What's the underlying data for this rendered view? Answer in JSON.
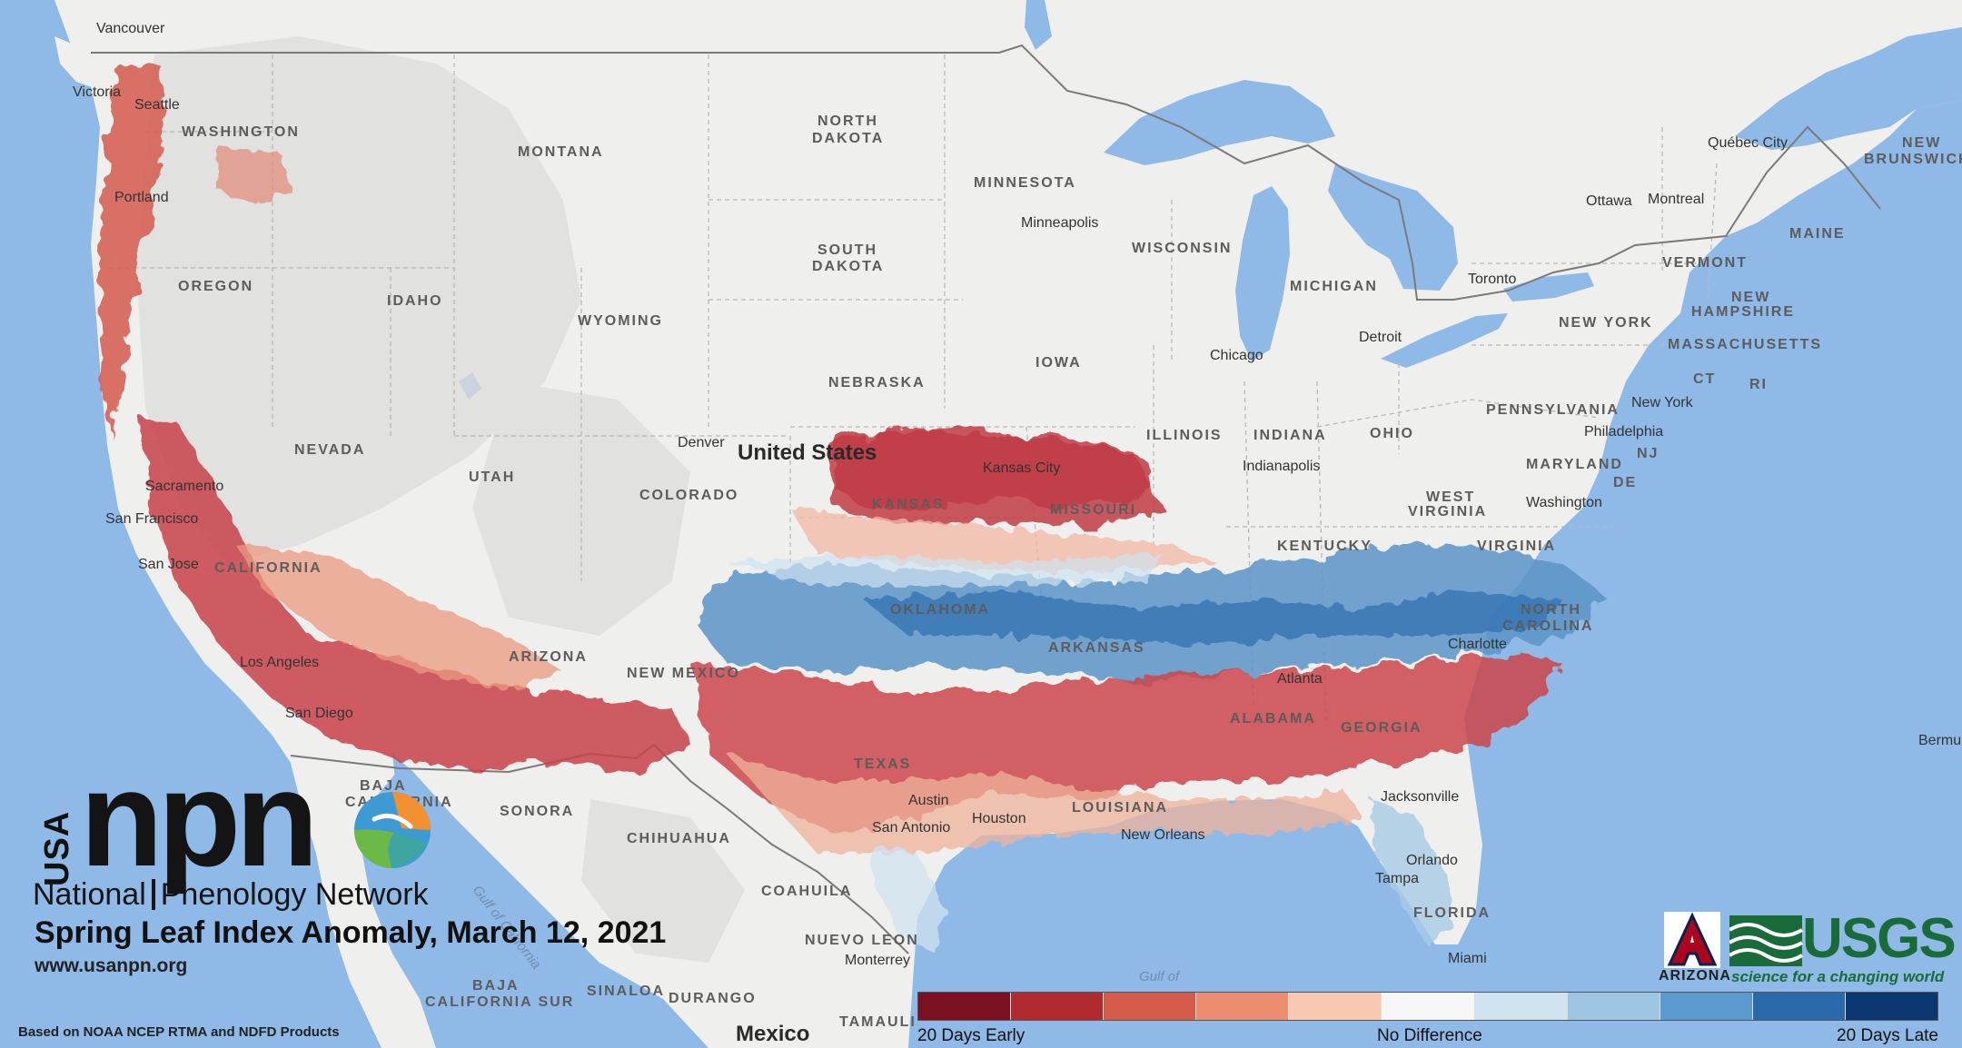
{
  "title": "Spring Leaf Index Anomaly, March 12, 2021",
  "website": "www.usanpn.org",
  "credit": "Based on NOAA NCEP RTMA and NDFD Products",
  "branding": {
    "usa": "USA",
    "npn": "npn",
    "name_part1": "National",
    "name_part2": "Phenology Network"
  },
  "partners": {
    "ua_letter": "A",
    "ua_name": "ARIZONA",
    "usgs": "USGS",
    "usgs_tagline": "science for a changing world"
  },
  "legend": {
    "colors": [
      "#7a1020",
      "#b02a2f",
      "#d45a4a",
      "#ec8d70",
      "#f8c8b0",
      "#f7f7f7",
      "#cfe3f0",
      "#9ec6e2",
      "#5b9bcf",
      "#2a6aab",
      "#0d3770"
    ],
    "label_left": "20 Days Early",
    "label_center": "No Difference",
    "label_right": "20 Days Late"
  },
  "country_labels": {
    "us": "United States",
    "mexico": "Mexico"
  },
  "state_labels": {
    "washington": "WASHINGTON",
    "montana": "MONTANA",
    "north_dakota_1": "NORTH",
    "north_dakota_2": "DAKOTA",
    "minnesota": "MINNESOTA",
    "south_dakota_1": "SOUTH",
    "south_dakota_2": "DAKOTA",
    "wisconsin": "WISCONSIN",
    "michigan": "MICHIGAN",
    "oregon": "OREGON",
    "idaho": "IDAHO",
    "wyoming": "WYOMING",
    "nebraska": "NEBRASKA",
    "iowa": "IOWA",
    "illinois": "ILLINOIS",
    "indiana": "INDIANA",
    "ohio": "OHIO",
    "pennsylvania": "PENNSYLVANIA",
    "new_york": "NEW YORK",
    "vermont": "VERMONT",
    "new_hampshire_1": "NEW",
    "new_hampshire_2": "HAMPSHIRE",
    "massachusetts": "MASSACHUSETTS",
    "maine": "MAINE",
    "ct": "CT",
    "ri": "RI",
    "nj": "NJ",
    "de": "DE",
    "maryland": "MARYLAND",
    "nevada": "NEVADA",
    "utah": "UTAH",
    "colorado": "COLORADO",
    "kansas": "KANSAS",
    "missouri": "MISSOURI",
    "kentucky": "KENTUCKY",
    "west_virginia_1": "WEST",
    "west_virginia_2": "VIRGINIA",
    "virginia": "VIRGINIA",
    "oklahoma": "OKLAHOMA",
    "arkansas": "ARKANSAS",
    "north_carolina_1": "NORTH",
    "north_carolina_2": "CAROLINA",
    "arizona": "ARIZONA",
    "new_mexico": "NEW MEXICO",
    "texas": "TEXAS",
    "louisiana": "LOUISIANA",
    "alabama": "ALABAMA",
    "georgia": "GEORGIA",
    "florida": "FLORIDA",
    "california": "CALIFORNIA",
    "new_brunswick_1": "NEW",
    "new_brunswick_2": "BRUNSWICK",
    "sonora": "SONORA",
    "chihuahua": "CHIHUAHUA",
    "coahuila": "COAHUILA",
    "nuevo_leon": "NUEVO LEON",
    "sinaloa": "SINALOA",
    "durango": "DURANGO",
    "tamaulipas": "TAMAULI",
    "baja_california_1": "BAJA",
    "baja_california_2": "CALIFORNIA",
    "baja_california_sur_1": "BAJA",
    "baja_california_sur_2": "CALIFORNIA SUR"
  },
  "city_labels": {
    "vancouver": "Vancouver",
    "victoria": "Victoria",
    "seattle": "Seattle",
    "portland": "Portland",
    "minneapolis": "Minneapolis",
    "toronto": "Toronto",
    "detroit": "Detroit",
    "chicago": "Chicago",
    "ottawa": "Ottawa",
    "montreal": "Montreal",
    "quebec_city": "Québec City",
    "new_york": "New York",
    "philadelphia": "Philadelphia",
    "washington": "Washington",
    "indianapolis": "Indianapolis",
    "denver": "Denver",
    "kansas_city": "Kansas City",
    "sacramento": "Sacramento",
    "san_francisco": "San Francisco",
    "san_jose": "San Jose",
    "los_angeles": "Los Angeles",
    "san_diego": "San Diego",
    "charlotte": "Charlotte",
    "atlanta": "Atlanta",
    "jacksonville": "Jacksonville",
    "orlando": "Orlando",
    "tampa": "Tampa",
    "miami": "Miami",
    "new_orleans": "New Orleans",
    "houston": "Houston",
    "austin": "Austin",
    "san_antonio": "San Antonio",
    "monterrey": "Monterrey",
    "bermuda": "Bermu"
  },
  "water_labels": {
    "gulf_of_mexico_1": "Gulf of",
    "gulf_of_california": "Gulf of California"
  }
}
